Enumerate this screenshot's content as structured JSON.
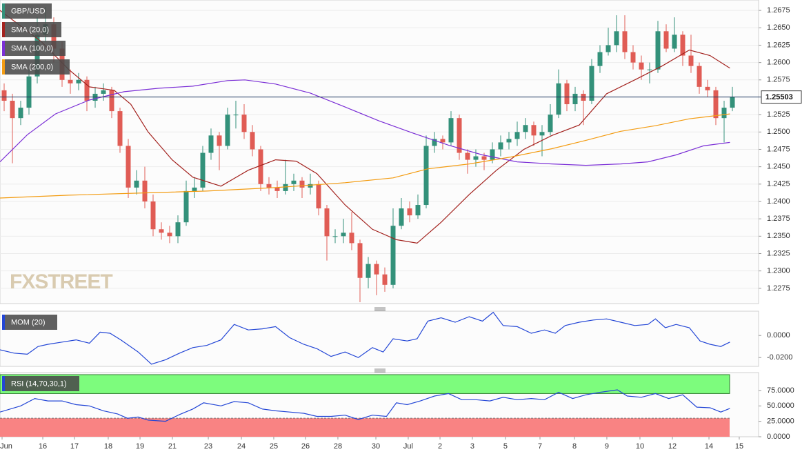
{
  "chart_data": [
    {
      "type": "candlestick",
      "name": "GBP/USD",
      "up_color": "#33917a",
      "down_color": "#e05c55",
      "xlim": [
        -0.5,
        91.5
      ],
      "ylim": [
        1.2253,
        1.269
      ],
      "grid": true,
      "last_value": 1.25503,
      "last_color": "#1c355e",
      "watermark": "FXSTREET",
      "yticks": [
        1.2275,
        {
          "value": 1.23,
          "label": "1.2300"
        },
        1.2325,
        {
          "value": 1.235,
          "label": "1.2350"
        },
        1.2375,
        {
          "value": 1.24,
          "label": "1.2400"
        },
        1.2425,
        {
          "value": 1.245,
          "label": "1.2450"
        },
        1.2475,
        {
          "value": 1.25,
          "label": "1.2500"
        },
        1.2525,
        1.2575,
        {
          "value": 1.26,
          "label": "1.2600"
        },
        1.2625,
        {
          "value": 1.265,
          "label": "1.2650"
        },
        1.2675
      ],
      "ohlc": [
        [
          1.256,
          1.257,
          1.253,
          1.2545
        ],
        [
          1.2545,
          1.2555,
          1.2455,
          1.252
        ],
        [
          1.252,
          1.2545,
          1.251,
          1.2535
        ],
        [
          1.2535,
          1.259,
          1.2525,
          1.258
        ],
        [
          1.258,
          1.2665,
          1.257,
          1.264
        ],
        [
          1.264,
          1.268,
          1.263,
          1.2655
        ],
        [
          1.2655,
          1.2665,
          1.26,
          1.262
        ],
        [
          1.262,
          1.263,
          1.2565,
          1.2575
        ],
        [
          1.2575,
          1.259,
          1.2555,
          1.257
        ],
        [
          1.257,
          1.2585,
          1.256,
          1.2575
        ],
        [
          1.2575,
          1.258,
          1.253,
          1.2545
        ],
        [
          1.2545,
          1.2565,
          1.2535,
          1.2555
        ],
        [
          1.2555,
          1.257,
          1.2545,
          1.256
        ],
        [
          1.256,
          1.2565,
          1.252,
          1.253
        ],
        [
          1.253,
          1.2535,
          1.247,
          1.248
        ],
        [
          1.248,
          1.249,
          1.2405,
          1.242
        ],
        [
          1.242,
          1.2445,
          1.241,
          1.243
        ],
        [
          1.243,
          1.245,
          1.239,
          1.24
        ],
        [
          1.24,
          1.241,
          1.235,
          1.236
        ],
        [
          1.236,
          1.237,
          1.2345,
          1.2355
        ],
        [
          1.2355,
          1.2365,
          1.234,
          1.235
        ],
        [
          1.235,
          1.238,
          1.234,
          1.237
        ],
        [
          1.237,
          1.243,
          1.2365,
          1.2415
        ],
        [
          1.2415,
          1.2435,
          1.2405,
          1.242
        ],
        [
          1.242,
          1.248,
          1.2415,
          1.247
        ],
        [
          1.247,
          1.2505,
          1.246,
          1.2495
        ],
        [
          1.2495,
          1.25,
          1.2445,
          1.248
        ],
        [
          1.248,
          1.2535,
          1.2475,
          1.2525
        ],
        [
          1.2525,
          1.2545,
          1.2505,
          1.2525
        ],
        [
          1.2525,
          1.254,
          1.249,
          1.25
        ],
        [
          1.25,
          1.251,
          1.2465,
          1.2475
        ],
        [
          1.2475,
          1.248,
          1.2415,
          1.2425
        ],
        [
          1.2425,
          1.2435,
          1.241,
          1.242
        ],
        [
          1.242,
          1.243,
          1.2405,
          1.2415
        ],
        [
          1.2415,
          1.246,
          1.241,
          1.2425
        ],
        [
          1.2425,
          1.244,
          1.2415,
          1.243
        ],
        [
          1.243,
          1.2435,
          1.2405,
          1.242
        ],
        [
          1.242,
          1.244,
          1.241,
          1.2425
        ],
        [
          1.2425,
          1.243,
          1.238,
          1.239
        ],
        [
          1.239,
          1.2395,
          1.2315,
          1.235
        ],
        [
          1.235,
          1.236,
          1.234,
          1.235
        ],
        [
          1.235,
          1.2375,
          1.234,
          1.2355
        ],
        [
          1.2355,
          1.2385,
          1.233,
          1.234
        ],
        [
          1.234,
          1.2345,
          1.2255,
          1.229
        ],
        [
          1.229,
          1.232,
          1.2275,
          1.231
        ],
        [
          1.231,
          1.2315,
          1.2265,
          1.2295
        ],
        [
          1.2295,
          1.2305,
          1.227,
          1.228
        ],
        [
          1.228,
          1.239,
          1.2275,
          1.2365
        ],
        [
          1.2365,
          1.2405,
          1.236,
          1.239
        ],
        [
          1.239,
          1.24,
          1.237,
          1.238
        ],
        [
          1.238,
          1.241,
          1.2375,
          1.2395
        ],
        [
          1.2395,
          1.2495,
          1.239,
          1.248
        ],
        [
          1.248,
          1.25,
          1.247,
          1.249
        ],
        [
          1.249,
          1.2495,
          1.2475,
          1.2485
        ],
        [
          1.2485,
          1.253,
          1.248,
          1.252
        ],
        [
          1.252,
          1.2525,
          1.246,
          1.247
        ],
        [
          1.247,
          1.2475,
          1.244,
          1.246
        ],
        [
          1.246,
          1.2475,
          1.245,
          1.2465
        ],
        [
          1.2465,
          1.247,
          1.2445,
          1.246
        ],
        [
          1.246,
          1.2485,
          1.2455,
          1.2475
        ],
        [
          1.2475,
          1.2495,
          1.2465,
          1.2485
        ],
        [
          1.2485,
          1.25,
          1.2475,
          1.249
        ],
        [
          1.249,
          1.2515,
          1.248,
          1.25
        ],
        [
          1.25,
          1.252,
          1.249,
          1.251
        ],
        [
          1.251,
          1.2515,
          1.248,
          1.2495
        ],
        [
          1.2495,
          1.251,
          1.2465,
          1.25
        ],
        [
          1.25,
          1.254,
          1.2495,
          1.2525
        ],
        [
          1.2525,
          1.259,
          1.252,
          1.257
        ],
        [
          1.257,
          1.2575,
          1.253,
          1.254
        ],
        [
          1.254,
          1.2565,
          1.253,
          1.2555
        ],
        [
          1.2555,
          1.256,
          1.251,
          1.2545
        ],
        [
          1.2545,
          1.2605,
          1.254,
          1.2595
        ],
        [
          1.2595,
          1.2625,
          1.2585,
          1.2615
        ],
        [
          1.2615,
          1.265,
          1.261,
          1.2625
        ],
        [
          1.2625,
          1.2668,
          1.2615,
          1.2645
        ],
        [
          1.2645,
          1.2668,
          1.2605,
          1.2615
        ],
        [
          1.2615,
          1.2625,
          1.259,
          1.26
        ],
        [
          1.26,
          1.261,
          1.2575,
          1.259
        ],
        [
          1.259,
          1.26,
          1.257,
          1.259
        ],
        [
          1.259,
          1.266,
          1.2585,
          1.2645
        ],
        [
          1.2645,
          1.2655,
          1.2615,
          1.262
        ],
        [
          1.262,
          1.2665,
          1.2615,
          1.264
        ],
        [
          1.264,
          1.2645,
          1.2595,
          1.261
        ],
        [
          1.261,
          1.264,
          1.2585,
          1.2595
        ],
        [
          1.2595,
          1.26,
          1.2555,
          1.2565
        ],
        [
          1.2565,
          1.2575,
          1.255,
          1.256
        ],
        [
          1.256,
          1.2565,
          1.251,
          1.252
        ],
        [
          1.252,
          1.2545,
          1.2485,
          1.2535
        ],
        [
          1.2535,
          1.2565,
          1.253,
          1.255
        ]
      ],
      "series": [
        {
          "name": "SMA (20,0)",
          "color": "#a3221e",
          "x": [
            -0.5,
            4.5,
            7.8,
            10.3,
            13.3,
            15.3,
            17.4,
            20.3,
            22.8,
            26.2,
            29.5,
            32.8,
            35.3,
            37.8,
            41.2,
            44.5,
            47.4,
            49.9,
            52.8,
            56.2,
            59.5,
            62.8,
            66.2,
            69.5,
            72.8,
            76.2,
            79.5,
            82.8,
            85.3,
            87.7
          ],
          "values": [
            1.2675,
            1.263,
            1.259,
            1.2565,
            1.256,
            1.254,
            1.25,
            1.246,
            1.2435,
            1.2422,
            1.2445,
            1.246,
            1.2458,
            1.244,
            1.2395,
            1.236,
            1.2345,
            1.234,
            1.237,
            1.241,
            1.2445,
            1.2475,
            1.2495,
            1.251,
            1.2555,
            1.2575,
            1.2595,
            1.2618,
            1.261,
            1.2592
          ]
        },
        {
          "name": "SMA (100,0)",
          "color": "#7b2fd6",
          "x": [
            -0.5,
            2.8,
            6.2,
            10.3,
            14.5,
            18.7,
            22.8,
            27,
            29.1,
            32.8,
            37,
            41.2,
            45.3,
            49.5,
            53.7,
            57.8,
            62,
            66.2,
            70.3,
            74.5,
            77.8,
            81.2,
            84.5,
            87.7
          ],
          "values": [
            1.2457,
            1.2496,
            1.2526,
            1.2546,
            1.2558,
            1.2563,
            1.2566,
            1.2574,
            1.2575,
            1.2569,
            1.2556,
            1.2536,
            1.2516,
            1.2498,
            1.2481,
            1.2467,
            1.2457,
            1.2454,
            1.2452,
            1.2454,
            1.2457,
            1.2467,
            1.248,
            1.2485
          ]
        },
        {
          "name": "SMA (200,0)",
          "color": "#f39c12",
          "x": [
            -0.5,
            7.8,
            16.2,
            24.5,
            32.8,
            41.2,
            47,
            51.2,
            56.2,
            61.2,
            66.2,
            70.3,
            74.5,
            78.7,
            82.8,
            87.7
          ],
          "values": [
            1.2405,
            1.2409,
            1.2412,
            1.2415,
            1.242,
            1.2427,
            1.2434,
            1.2447,
            1.2454,
            1.2464,
            1.2476,
            1.2488,
            1.2501,
            1.2509,
            1.2519,
            1.2526
          ]
        }
      ]
    },
    {
      "type": "line",
      "xlim": [
        -0.5,
        91.5
      ],
      "ylim": [
        -0.028,
        0.022
      ],
      "yticks": [
        {
          "value": 0,
          "label": "0.0000"
        },
        {
          "value": -0.02,
          "label": "-0.0200"
        }
      ],
      "series": [
        {
          "name": "MOM (20)",
          "color": "#2346d6",
          "x": [
            -0.5,
            1.2,
            2.8,
            4.1,
            5.3,
            7,
            8.7,
            10.3,
            11.6,
            12.8,
            14.1,
            16.2,
            17.8,
            19.5,
            21.2,
            22.8,
            24.5,
            26.2,
            27.8,
            29.5,
            31.2,
            32.8,
            34.5,
            36.2,
            37.8,
            39.5,
            41.2,
            42.8,
            44.5,
            45.8,
            47,
            48.7,
            49.9,
            51.2,
            52.8,
            54.5,
            56.2,
            57.8,
            59.1,
            60.3,
            62,
            63.7,
            65.3,
            66.6,
            67.8,
            69.5,
            71.2,
            72.8,
            74.5,
            76.2,
            77.8,
            78.7,
            79.9,
            81.2,
            82.8,
            84.1,
            85.3,
            86.6,
            87.7
          ],
          "values": [
            -0.013,
            -0.016,
            -0.017,
            -0.01,
            -0.008,
            -0.006,
            -0.004,
            -0.007,
            0.003,
            0.002,
            -0.004,
            -0.015,
            -0.026,
            -0.022,
            -0.016,
            -0.011,
            -0.009,
            -0.004,
            0.01,
            0.005,
            0.006,
            0.008,
            -0.002,
            -0.008,
            -0.012,
            -0.019,
            -0.015,
            -0.02,
            -0.011,
            -0.015,
            -0.003,
            -0.005,
            -0.003,
            0.013,
            0.016,
            0.012,
            0.017,
            0.013,
            0.021,
            0.009,
            0.008,
            0.002,
            0.005,
            0.002,
            0.009,
            0.012,
            0.014,
            0.015,
            0.012,
            0.009,
            0.01,
            0.015,
            0.007,
            0.01,
            0.007,
            -0.005,
            -0.008,
            -0.01,
            -0.006
          ]
        }
      ]
    },
    {
      "type": "line",
      "xlim": [
        -0.5,
        91.5
      ],
      "ylim": [
        0,
        104
      ],
      "bands": {
        "upper": 70,
        "lower": 30,
        "upper_color": "#7dfc7d",
        "lower_color": "#f98383"
      },
      "yticks": [
        {
          "value": 0,
          "label": "0.0000"
        },
        {
          "value": 25,
          "label": "25.0000"
        },
        {
          "value": 50,
          "label": "50.0000"
        },
        {
          "value": 75,
          "label": "75.0000"
        }
      ],
      "xticks": [
        {
          "value": -0.25,
          "label": "Jun"
        },
        {
          "value": 4.67,
          "label": "16"
        },
        {
          "value": 8.5,
          "label": "17"
        },
        {
          "value": 12.58,
          "label": "18"
        },
        {
          "value": 16.42,
          "label": "19"
        },
        {
          "value": 20.33,
          "label": "21"
        },
        {
          "value": 24.67,
          "label": "23"
        },
        {
          "value": 28.67,
          "label": "24"
        },
        {
          "value": 32.58,
          "label": "25"
        },
        {
          "value": 36.42,
          "label": "26"
        },
        {
          "value": 40.33,
          "label": "28"
        },
        {
          "value": 44.92,
          "label": "30"
        },
        {
          "value": 48.83,
          "label": "Jul"
        },
        {
          "value": 52.67,
          "label": "2"
        },
        {
          "value": 56.58,
          "label": "3"
        },
        {
          "value": 60.58,
          "label": "5"
        },
        {
          "value": 64.75,
          "label": "7"
        },
        {
          "value": 68.92,
          "label": "8"
        },
        {
          "value": 72.83,
          "label": "9"
        },
        {
          "value": 76.83,
          "label": "10"
        },
        {
          "value": 80.75,
          "label": "12"
        },
        {
          "value": 85.17,
          "label": "14"
        },
        {
          "value": 88.83,
          "label": "15"
        }
      ],
      "series": [
        {
          "name": "RSI (14,70,30,1)",
          "color": "#2346d6",
          "x": [
            -0.5,
            2,
            3.7,
            5.3,
            7,
            8.7,
            10.3,
            12,
            13.7,
            14.9,
            16.2,
            17.4,
            19.5,
            21.2,
            22.8,
            24.1,
            26.2,
            27.8,
            29.5,
            31.2,
            32.8,
            34.5,
            36.2,
            37.8,
            39.5,
            41.2,
            42.8,
            44.5,
            46.2,
            47.4,
            48.7,
            50.3,
            52,
            53.7,
            55.3,
            57,
            58.7,
            60.3,
            62,
            63.7,
            65.3,
            67,
            68.7,
            70.3,
            72,
            74.1,
            75.3,
            77,
            78.7,
            80.3,
            82,
            83.7,
            85.3,
            86.6,
            87.7
          ],
          "values": [
            40,
            50,
            62,
            58,
            58,
            52,
            50,
            42,
            37,
            30,
            32,
            27,
            25,
            36,
            45,
            55,
            50,
            57,
            55,
            45,
            42,
            40,
            38,
            33,
            33,
            35,
            28,
            35,
            33,
            55,
            52,
            58,
            66,
            70,
            60,
            60,
            58,
            64,
            60,
            62,
            60,
            72,
            62,
            68,
            72,
            76,
            66,
            64,
            70,
            62,
            68,
            48,
            47,
            40,
            46
          ]
        }
      ]
    }
  ]
}
